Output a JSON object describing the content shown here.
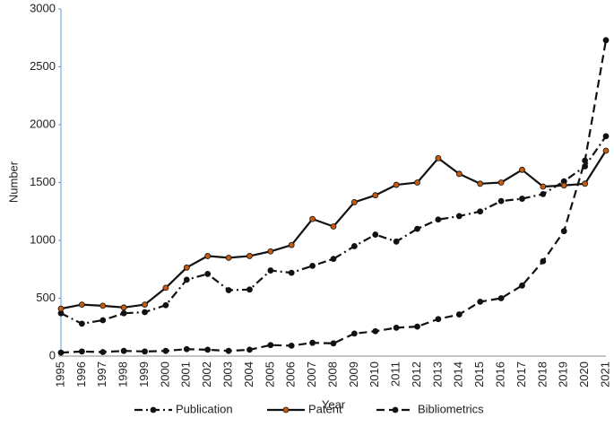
{
  "chart_data": {
    "type": "line",
    "x_label": "Year",
    "y_label": "Number",
    "categories": [
      "1995",
      "1996",
      "1997",
      "1998",
      "1999",
      "2000",
      "2001",
      "2002",
      "2003",
      "2004",
      "2005",
      "2006",
      "2007",
      "2008",
      "2009",
      "2010",
      "2011",
      "2012",
      "2013",
      "2014",
      "2015",
      "2016",
      "2017",
      "2018",
      "2019",
      "2020",
      "2021"
    ],
    "series": [
      {
        "name": "Publication",
        "color": "#111111",
        "marker_color": "#111111",
        "line_style": "dashdot",
        "values": [
          370,
          280,
          310,
          370,
          380,
          440,
          660,
          710,
          570,
          575,
          740,
          720,
          780,
          840,
          950,
          1050,
          990,
          1100,
          1180,
          1210,
          1250,
          1340,
          1360,
          1400,
          1510,
          1640,
          1900
        ]
      },
      {
        "name": "Patent",
        "color": "#111111",
        "marker_color": "#c55a11",
        "line_style": "solid",
        "values": [
          410,
          445,
          435,
          420,
          445,
          590,
          765,
          865,
          850,
          865,
          905,
          960,
          1185,
          1120,
          1330,
          1390,
          1480,
          1500,
          1710,
          1575,
          1490,
          1500,
          1610,
          1465,
          1475,
          1490,
          1775
        ]
      },
      {
        "name": "Bibliometrics",
        "color": "#111111",
        "marker_color": "#111111",
        "line_style": "dashed",
        "values": [
          30,
          40,
          35,
          45,
          40,
          45,
          60,
          55,
          45,
          55,
          95,
          90,
          115,
          110,
          195,
          215,
          245,
          255,
          320,
          360,
          470,
          500,
          610,
          820,
          1080,
          1690,
          2730
        ]
      }
    ],
    "ylim": [
      0,
      3000
    ],
    "yticks": [
      0,
      500,
      1000,
      1500,
      2000,
      2500,
      3000
    ],
    "grid": false,
    "legend": "bottom"
  }
}
